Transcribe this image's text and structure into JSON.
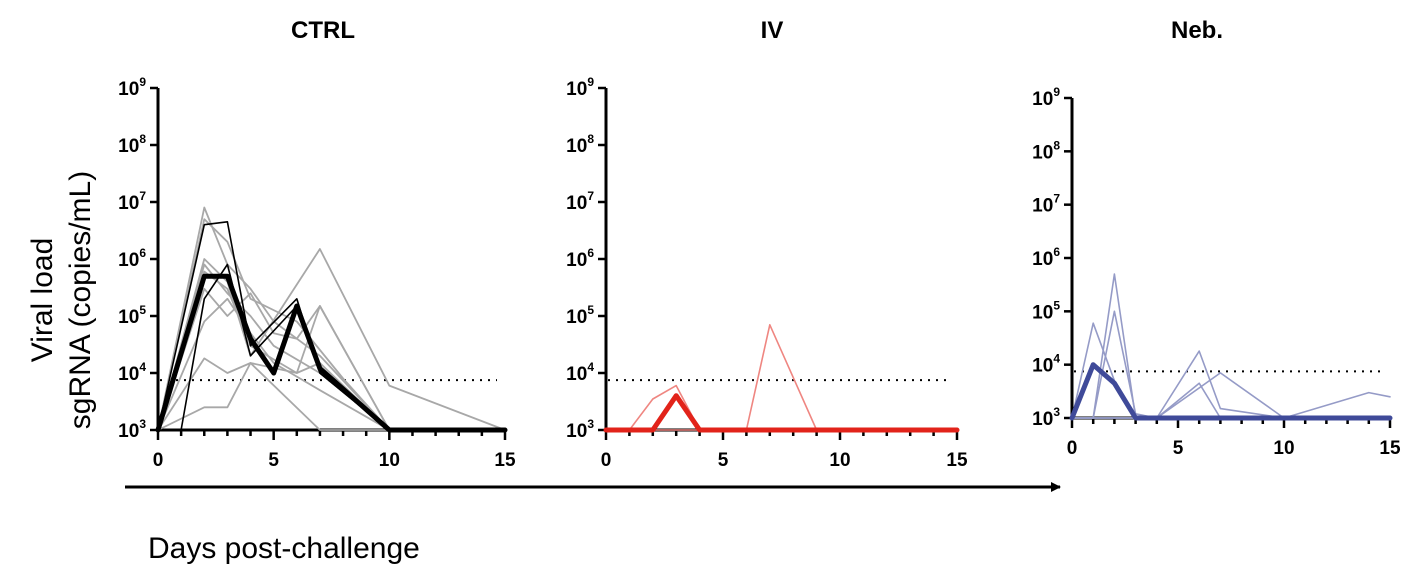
{
  "xlabel": "Days post-challenge",
  "ylabel_line1": "Viral load",
  "ylabel_line2": "sgRNA (copies/mL)",
  "chart_data": [
    {
      "type": "line",
      "title": "CTRL",
      "color": "#000000",
      "x_ticks": [
        0,
        5,
        10,
        15
      ],
      "xlim": [
        0,
        15
      ],
      "ylim": [
        1000,
        1000000000
      ],
      "y_scale": "log",
      "y_ticks": [
        3,
        4,
        5,
        6,
        7,
        8,
        9
      ],
      "detection_limit": 7500,
      "series": [
        {
          "style": "individual-gray",
          "x": [
            0,
            2,
            3,
            4,
            5,
            7,
            10
          ],
          "y": [
            800,
            8000000,
            800000,
            300000,
            80000,
            20000,
            800
          ]
        },
        {
          "style": "individual-gray",
          "x": [
            0,
            2,
            3,
            4,
            6,
            8,
            10
          ],
          "y": [
            800,
            5000000,
            2000000,
            200000,
            80000,
            8000,
            800
          ]
        },
        {
          "style": "individual-gray",
          "x": [
            0,
            2,
            3,
            4,
            7,
            10,
            15
          ],
          "y": [
            800,
            1000000,
            400000,
            20000,
            1500000,
            6000,
            800
          ]
        },
        {
          "style": "individual-gray",
          "x": [
            0,
            2,
            3,
            4,
            6,
            7,
            10
          ],
          "y": [
            800,
            600000,
            300000,
            30000,
            10000,
            15000,
            800
          ]
        },
        {
          "style": "individual-gray",
          "x": [
            0,
            2,
            3,
            4,
            5,
            7,
            10
          ],
          "y": [
            800,
            80000,
            200000,
            50000,
            15000,
            5000,
            800
          ]
        },
        {
          "style": "individual-gray",
          "x": [
            0,
            2,
            3,
            4,
            6,
            7,
            10
          ],
          "y": [
            800,
            18000,
            10000,
            15000,
            10000,
            150000,
            800
          ]
        },
        {
          "style": "individual-gray",
          "x": [
            0,
            2,
            3,
            4,
            7,
            10
          ],
          "y": [
            800,
            2500,
            2500,
            15000,
            800,
            800
          ]
        },
        {
          "style": "individual-gray",
          "x": [
            0,
            2,
            3,
            4,
            5,
            6,
            7,
            10
          ],
          "y": [
            800,
            300000,
            100000,
            250000,
            50000,
            40000,
            150000,
            800
          ]
        },
        {
          "style": "individual-gray",
          "x": [
            0,
            2,
            3,
            4,
            5,
            7,
            10
          ],
          "y": [
            800,
            800000,
            250000,
            100000,
            30000,
            10000,
            800
          ]
        },
        {
          "style": "individual-black",
          "x": [
            0,
            2,
            3,
            4,
            6,
            7,
            10
          ],
          "y": [
            800,
            4000000,
            4500000,
            30000,
            200000,
            10000,
            800
          ]
        },
        {
          "style": "individual-black",
          "x": [
            1,
            2,
            3,
            4,
            6,
            7,
            10
          ],
          "y": [
            800,
            200000,
            800000,
            20000,
            150000,
            10000,
            800
          ]
        },
        {
          "style": "median",
          "x": [
            0,
            2,
            3,
            4,
            5,
            6,
            7,
            10,
            15
          ],
          "y": [
            800,
            500000,
            500000,
            40000,
            10000,
            150000,
            12000,
            800,
            800
          ]
        }
      ]
    },
    {
      "type": "line",
      "title": "IV",
      "color": "#e2231a",
      "x_ticks": [
        0,
        5,
        10,
        15
      ],
      "xlim": [
        0,
        15
      ],
      "ylim": [
        1000,
        1000000000
      ],
      "y_scale": "log",
      "y_ticks": [
        3,
        4,
        5,
        6,
        7,
        8,
        9
      ],
      "detection_limit": 7500,
      "series": [
        {
          "style": "individual",
          "x": [
            0,
            1,
            2,
            3,
            4,
            15
          ],
          "y": [
            800,
            800,
            3500,
            6000,
            800,
            800
          ]
        },
        {
          "style": "individual",
          "x": [
            0,
            6,
            7,
            9,
            15
          ],
          "y": [
            800,
            800,
            70000,
            800,
            800
          ]
        },
        {
          "style": "median",
          "x": [
            0,
            2,
            3,
            4,
            15
          ],
          "y": [
            800,
            800,
            4000,
            800,
            800
          ]
        }
      ]
    },
    {
      "type": "line",
      "title": "Neb.",
      "color": "#3f4a99",
      "x_ticks": [
        0,
        5,
        10,
        15
      ],
      "xlim": [
        0,
        15
      ],
      "ylim": [
        1000,
        1000000000
      ],
      "y_scale": "log",
      "y_ticks": [
        3,
        4,
        5,
        6,
        7,
        8,
        9
      ],
      "detection_limit": 7500,
      "series": [
        {
          "style": "individual",
          "x": [
            0,
            1,
            2,
            3,
            15
          ],
          "y": [
            800,
            60000,
            5000,
            800,
            800
          ]
        },
        {
          "style": "individual",
          "x": [
            0,
            1,
            2,
            3,
            4,
            15
          ],
          "y": [
            800,
            800,
            500000,
            800,
            800,
            800
          ]
        },
        {
          "style": "individual",
          "x": [
            0,
            1,
            2,
            3,
            4,
            15
          ],
          "y": [
            800,
            800,
            100000,
            1200,
            800,
            800
          ]
        },
        {
          "style": "individual",
          "x": [
            0,
            3,
            4,
            6,
            7,
            10,
            14,
            15
          ],
          "y": [
            800,
            800,
            800,
            18000,
            1500,
            800,
            3000,
            2500
          ]
        },
        {
          "style": "individual",
          "x": [
            0,
            2,
            4,
            6,
            7,
            10
          ],
          "y": [
            800,
            800,
            800,
            4500,
            800,
            800
          ]
        },
        {
          "style": "individual",
          "x": [
            0,
            3,
            4,
            7,
            10,
            15
          ],
          "y": [
            800,
            800,
            800,
            7000,
            800,
            800
          ]
        },
        {
          "style": "median",
          "x": [
            0,
            1,
            2,
            3,
            15
          ],
          "y": [
            800,
            10000,
            4500,
            800,
            800
          ]
        }
      ]
    }
  ]
}
